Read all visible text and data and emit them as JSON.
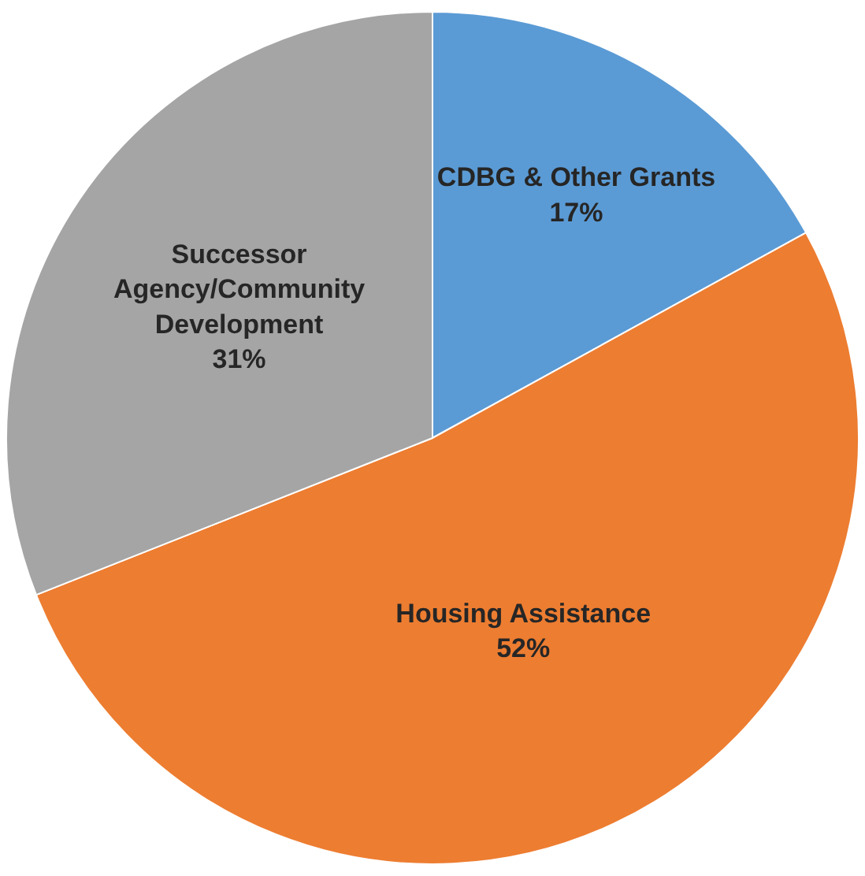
{
  "chart_data": {
    "type": "pie",
    "categories": [
      "CDBG & Other Grants",
      "Housing Assistance",
      "Successor Agency/Community Development"
    ],
    "values": [
      17,
      52,
      31
    ],
    "value_labels": [
      "17%",
      "52%",
      "31%"
    ],
    "colors": [
      "#5b9bd5",
      "#ed7d31",
      "#a5a5a5"
    ],
    "legend": false
  }
}
